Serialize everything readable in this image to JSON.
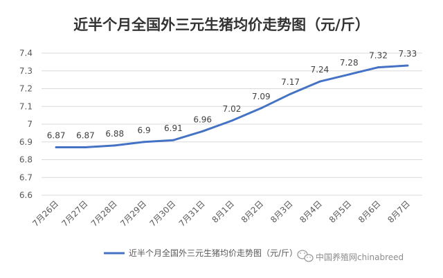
{
  "chart_data": {
    "type": "line",
    "title": "近半个月全国外三元生猪均价走势图（元/斤）",
    "categories": [
      "7月26日",
      "7月27日",
      "7月28日",
      "7月29日",
      "7月30日",
      "7月31日",
      "8月1日",
      "8月2日",
      "8月3日",
      "8月4日",
      "8月5日",
      "8月6日",
      "8月7日"
    ],
    "series": [
      {
        "name": "近半个月全国外三元生猪均价走势图（元/斤）",
        "values": [
          6.87,
          6.87,
          6.88,
          6.9,
          6.91,
          6.96,
          7.02,
          7.09,
          7.17,
          7.24,
          7.28,
          7.32,
          7.33
        ],
        "color": "#4472C4"
      }
    ],
    "ylim": [
      6.6,
      7.4
    ],
    "yticks": [
      "6.6",
      "6.7",
      "6.8",
      "6.9",
      "7",
      "7.1",
      "7.2",
      "7.3",
      "7.4"
    ],
    "grid": true,
    "legend": "bottom",
    "xlabel": "",
    "ylabel": ""
  },
  "watermark": {
    "text": "中国养殖网chinabreed",
    "icon": "wechat-icon"
  }
}
